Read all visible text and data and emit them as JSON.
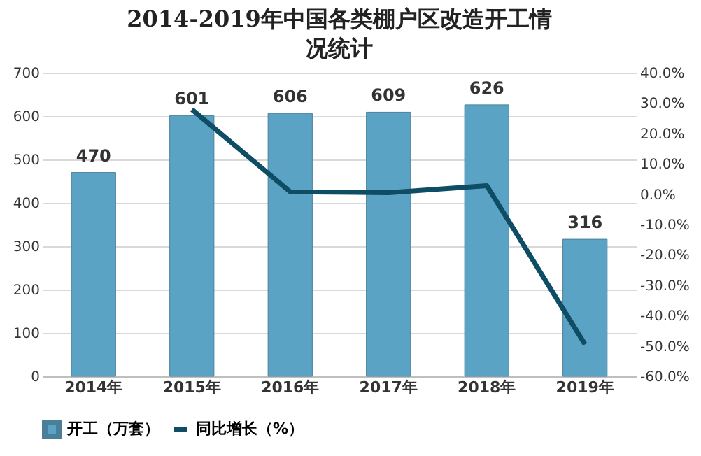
{
  "chart_data": {
    "type": "bar",
    "title": "2014-2019年中国各类棚户区改造开工情况统计",
    "categories": [
      "2014年",
      "2015年",
      "2016年",
      "2017年",
      "2018年",
      "2019年"
    ],
    "series": [
      {
        "name": "开工（万套）",
        "color": "#5ba3c5",
        "values": [
          470,
          601,
          606,
          609,
          626,
          316
        ],
        "value_labels": [
          "470",
          "601",
          "606",
          "609",
          "626",
          "316"
        ]
      },
      {
        "name": "同比增长（%）",
        "type": "line",
        "axis": "y2",
        "color": "#0e4d64",
        "values": [
          null,
          27.9,
          0.8,
          0.5,
          2.8,
          -49.5
        ]
      }
    ],
    "ylim": [
      0,
      700
    ],
    "yticks": [
      0,
      100,
      200,
      300,
      400,
      500,
      600,
      700
    ],
    "y2lim": [
      -60,
      40
    ],
    "y2ticks": [
      {
        "value": -60,
        "label": "-60.0%"
      },
      {
        "value": -50,
        "label": "-50.0%"
      },
      {
        "value": -40,
        "label": "-40.0%"
      },
      {
        "value": -30,
        "label": "-30.0%"
      },
      {
        "value": -20,
        "label": "-20.0%"
      },
      {
        "value": -10,
        "label": "-10.0%"
      },
      {
        "value": 0,
        "label": "0.0%"
      },
      {
        "value": 10,
        "label": "10.0%"
      },
      {
        "value": 20,
        "label": "20.0%"
      },
      {
        "value": 30,
        "label": "30.0%"
      },
      {
        "value": 40,
        "label": "40.0%"
      }
    ],
    "grid": "y",
    "legend": "bottom",
    "marker": "none",
    "line_style": "solid"
  }
}
